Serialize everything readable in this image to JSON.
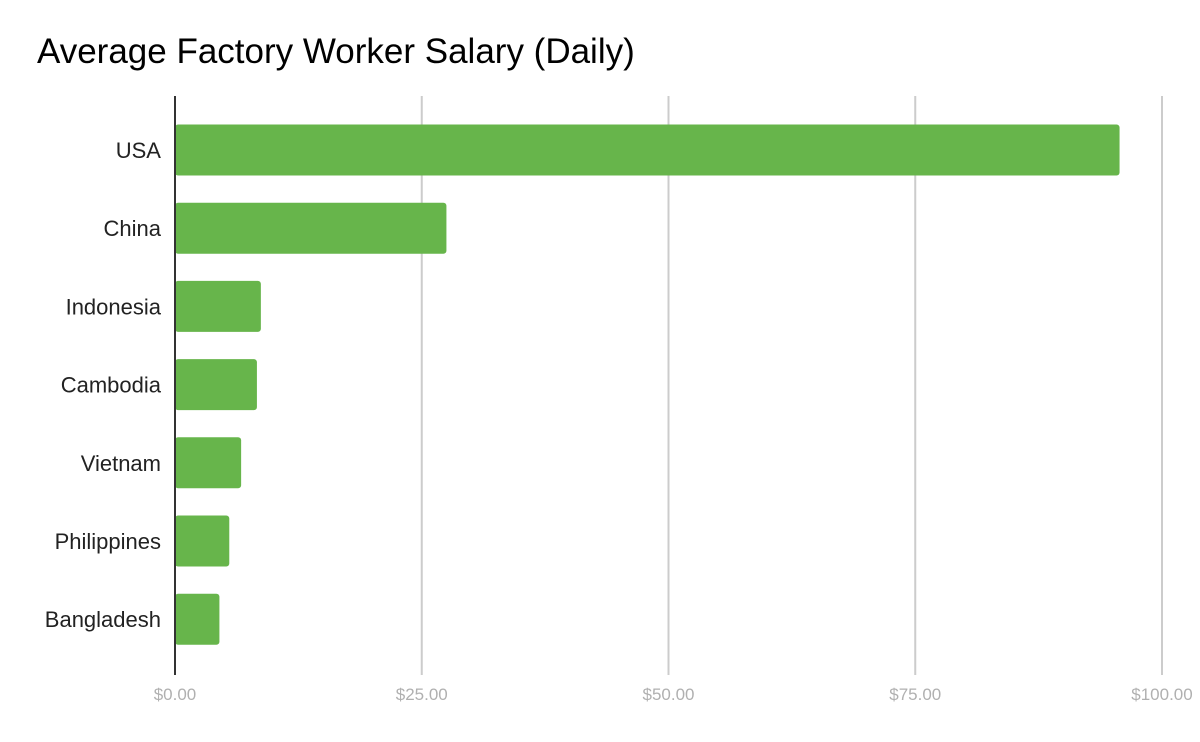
{
  "chart_data": {
    "type": "bar",
    "orientation": "horizontal",
    "title": "Average Factory Worker Salary (Daily)",
    "xlabel": "",
    "ylabel": "",
    "categories": [
      "USA",
      "China",
      "Indonesia",
      "Cambodia",
      "Vietnam",
      "Philippines",
      "Bangladesh"
    ],
    "series": [
      {
        "values": [
          95.7,
          27.5,
          8.7,
          8.3,
          6.7,
          5.5,
          4.5
        ],
        "color": "#67b54b"
      }
    ],
    "xlim": [
      0,
      100
    ],
    "x_ticks": [
      0,
      25,
      50,
      75,
      100
    ],
    "x_tick_labels": [
      "$0.00",
      "$25.00",
      "$50.00",
      "$75.00",
      "$100.00"
    ],
    "grid": true,
    "legend": "none",
    "colors": {
      "bar": "#67b54b",
      "gridline": "#cccccc",
      "axis": "#333333",
      "tick_label": "#b0b0b0"
    }
  }
}
